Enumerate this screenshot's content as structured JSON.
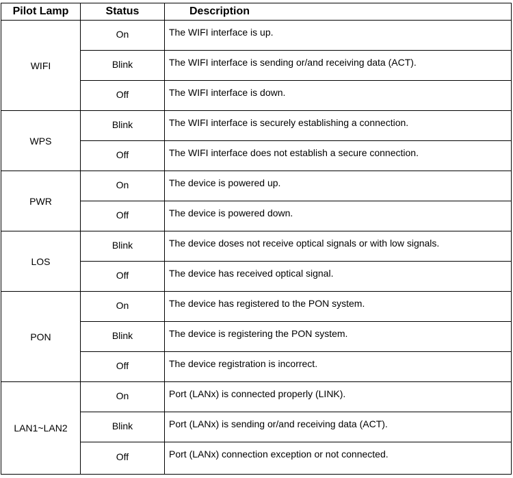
{
  "headers": {
    "lamp": "Pilot  Lamp",
    "status": "Status",
    "description": "Description"
  },
  "groups": [
    {
      "lamp": "WIFI",
      "rows": [
        {
          "status": "On",
          "description": "The WIFI interface is up."
        },
        {
          "status": "Blink",
          "description": "The WIFI interface is sending or/and receiving data (ACT)."
        },
        {
          "status": "Off",
          "description": "The WIFI interface is down."
        }
      ]
    },
    {
      "lamp": "WPS",
      "rows": [
        {
          "status": "Blink",
          "description": "The WIFI interface is securely establishing a connection."
        },
        {
          "status": "Off",
          "description": "The WIFI interface does not establish a secure connection."
        }
      ]
    },
    {
      "lamp": "PWR",
      "rows": [
        {
          "status": "On",
          "description": "The device is powered up."
        },
        {
          "status": "Off",
          "description": "The device is powered down."
        }
      ]
    },
    {
      "lamp": "LOS",
      "rows": [
        {
          "status": "Blink",
          "description": "The device doses not receive optical signals or with low signals."
        },
        {
          "status": "Off",
          "description": "The device has received optical signal."
        }
      ]
    },
    {
      "lamp": "PON",
      "rows": [
        {
          "status": "On",
          "description": "The device has registered to the PON system."
        },
        {
          "status": "Blink",
          "description": "The device is registering the PON system."
        },
        {
          "status": "Off",
          "description": "The device registration is incorrect."
        }
      ]
    },
    {
      "lamp": "LAN1~LAN2",
      "rows": [
        {
          "status": "On",
          "description": "Port (LANx) is connected properly (LINK)."
        },
        {
          "status": "Blink",
          "description": "Port (LANx) is sending or/and receiving data (ACT)."
        },
        {
          "status": "Off",
          "description": "Port (LANx) connection exception or not connected."
        }
      ]
    }
  ]
}
